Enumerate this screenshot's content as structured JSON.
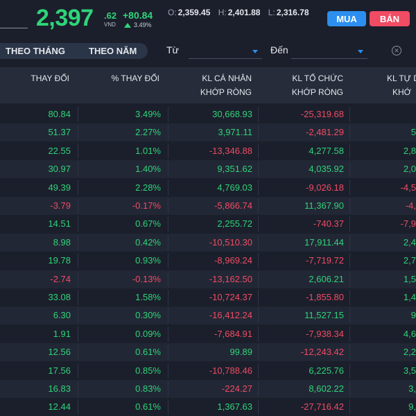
{
  "header": {
    "price_int": "2,397",
    "price_frac": ".62",
    "price_unit": "VND",
    "change_abs": "+80.84",
    "change_pct": "3.49%",
    "ohl": [
      {
        "k": "O:",
        "v": "2,359.45"
      },
      {
        "k": "H:",
        "v": "2,401.88"
      },
      {
        "k": "L:",
        "v": "2,316.78"
      }
    ],
    "buy_label": "MUA",
    "sell_label": "BÁN"
  },
  "filters": {
    "tab_month": "THEO THÁNG",
    "tab_year": "THEO NĂM",
    "from_label": "Từ",
    "to_label": "Đến"
  },
  "table": {
    "headers": [
      {
        "l1": "THAY ĐỔI",
        "l2": ""
      },
      {
        "l1": "% THAY ĐỔI",
        "l2": ""
      },
      {
        "l1": "KL CÁ NHÂN",
        "l2": "KHỚP RÒNG"
      },
      {
        "l1": "KL TỔ CHỨC",
        "l2": "KHỚP RÒNG"
      },
      {
        "l1": "KL TỰ D",
        "l2": "KHỚ"
      }
    ],
    "rows": [
      {
        "chg": "80.84",
        "pct": "3.49%",
        "ind": "30,668.93",
        "org": "-25,319.68",
        "self": ""
      },
      {
        "chg": "51.37",
        "pct": "2.27%",
        "ind": "3,971.11",
        "org": "-2,481.29",
        "self": "5"
      },
      {
        "chg": "22.55",
        "pct": "1.01%",
        "ind": "-13,346.88",
        "org": "4,277.58",
        "self": "2,8"
      },
      {
        "chg": "30.97",
        "pct": "1.40%",
        "ind": "9,351.62",
        "org": "4,035.92",
        "self": "2,0"
      },
      {
        "chg": "49.39",
        "pct": "2.28%",
        "ind": "4,769.03",
        "org": "-9,026.18",
        "self": "-4,5"
      },
      {
        "chg": "-3.79",
        "pct": "-0.17%",
        "ind": "-5,866.74",
        "org": "11,367.90",
        "self": "-4,"
      },
      {
        "chg": "14.51",
        "pct": "0.67%",
        "ind": "2,255.72",
        "org": "-740.37",
        "self": "-7,9"
      },
      {
        "chg": "8.98",
        "pct": "0.42%",
        "ind": "-10,510.30",
        "org": "17,911.44",
        "self": "2,4"
      },
      {
        "chg": "19.78",
        "pct": "0.93%",
        "ind": "-8,969.24",
        "org": "-7,719.72",
        "self": "2,7"
      },
      {
        "chg": "-2.74",
        "pct": "-0.13%",
        "ind": "-13,162.50",
        "org": "2,606.21",
        "self": "1,5"
      },
      {
        "chg": "33.08",
        "pct": "1.58%",
        "ind": "-10,724.37",
        "org": "-1,855.80",
        "self": "1,4"
      },
      {
        "chg": "6.30",
        "pct": "0.30%",
        "ind": "-16,412.24",
        "org": "11,527.15",
        "self": "9"
      },
      {
        "chg": "1.91",
        "pct": "0.09%",
        "ind": "-7,684.91",
        "org": "-7,938.34",
        "self": "4,6"
      },
      {
        "chg": "12.56",
        "pct": "0.61%",
        "ind": "99.89",
        "org": "-12,243.42",
        "self": "2,2"
      },
      {
        "chg": "17.56",
        "pct": "0.85%",
        "ind": "-10,788.46",
        "org": "6,225.76",
        "self": "3,5"
      },
      {
        "chg": "16.83",
        "pct": "0.83%",
        "ind": "-224.27",
        "org": "8,602.22",
        "self": "3,"
      },
      {
        "chg": "12.44",
        "pct": "0.61%",
        "ind": "1,367.63",
        "org": "-27,716.42",
        "self": "9,"
      }
    ]
  },
  "colors": {
    "up": "#2fd47a",
    "down": "#f04c64",
    "buy": "#2c8ff0",
    "sell": "#f04c64"
  }
}
